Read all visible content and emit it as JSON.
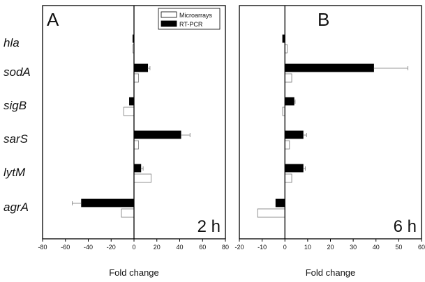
{
  "chart_data": [
    {
      "panel_label": "A",
      "time_label": "2 h",
      "type": "bar",
      "orientation": "horizontal",
      "xlabel": "Fold change",
      "categories": [
        "hla",
        "sodA",
        "sigB",
        "sarS",
        "lytM",
        "agrA"
      ],
      "series": [
        {
          "name": "Microarrays",
          "fill": "#ffffff",
          "values": [
            -1,
            4,
            -9,
            4,
            15,
            -11
          ],
          "errors": [
            0,
            0,
            0,
            0,
            0,
            0
          ]
        },
        {
          "name": "RT-PCR",
          "fill": "#000000",
          "values": [
            -1,
            12,
            -4,
            41,
            6,
            -46
          ],
          "errors": [
            0,
            2,
            0,
            8,
            2,
            8
          ]
        }
      ],
      "xlim": [
        -80,
        80
      ],
      "xticks": [
        -80,
        -60,
        -40,
        -20,
        0,
        20,
        40,
        60,
        80
      ],
      "legend": "top-right"
    },
    {
      "panel_label": "B",
      "time_label": "6 h",
      "type": "bar",
      "orientation": "horizontal",
      "xlabel": "Fold change",
      "categories": [
        "hla",
        "sodA",
        "sigB",
        "sarS",
        "lytM",
        "agrA"
      ],
      "series": [
        {
          "name": "Microarrays",
          "fill": "#ffffff",
          "values": [
            1,
            3,
            -1,
            2,
            3,
            -12
          ],
          "errors": [
            0,
            0,
            0,
            0,
            0,
            0
          ]
        },
        {
          "name": "RT-PCR",
          "fill": "#000000",
          "values": [
            -1,
            39,
            4,
            8,
            8,
            -4
          ],
          "errors": [
            0,
            15,
            0.5,
            1.5,
            1,
            0
          ]
        }
      ],
      "xlim": [
        -20,
        60
      ],
      "xticks": [
        -20,
        -10,
        0,
        10,
        20,
        30,
        40,
        50,
        60
      ]
    }
  ]
}
